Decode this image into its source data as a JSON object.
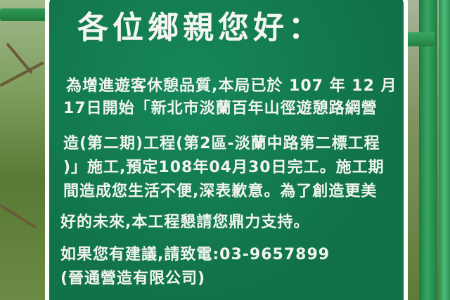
{
  "sign": {
    "title": "各位鄉親您好：",
    "lines": [
      "為增進遊客休憩品質,本局已於 107 年 12 月",
      "17日開始「新北市淡蘭百年山徑遊憩路網營",
      "造(第二期)工程(第2區-淡蘭中路第二標工程",
      ")」施工,預定108年04月30日完工。施工期",
      "間造成您生活不便,深表歉意。為了創造更美",
      "好的未來,本工程懇請您鼎力支持。",
      "如果您有建議,請致電:03-9657899",
      "(晉通營造有限公司)"
    ]
  },
  "colors": {
    "sign_green": "#127a4d",
    "text": "#f2f5ef",
    "pole_green": "#2f9a55"
  }
}
